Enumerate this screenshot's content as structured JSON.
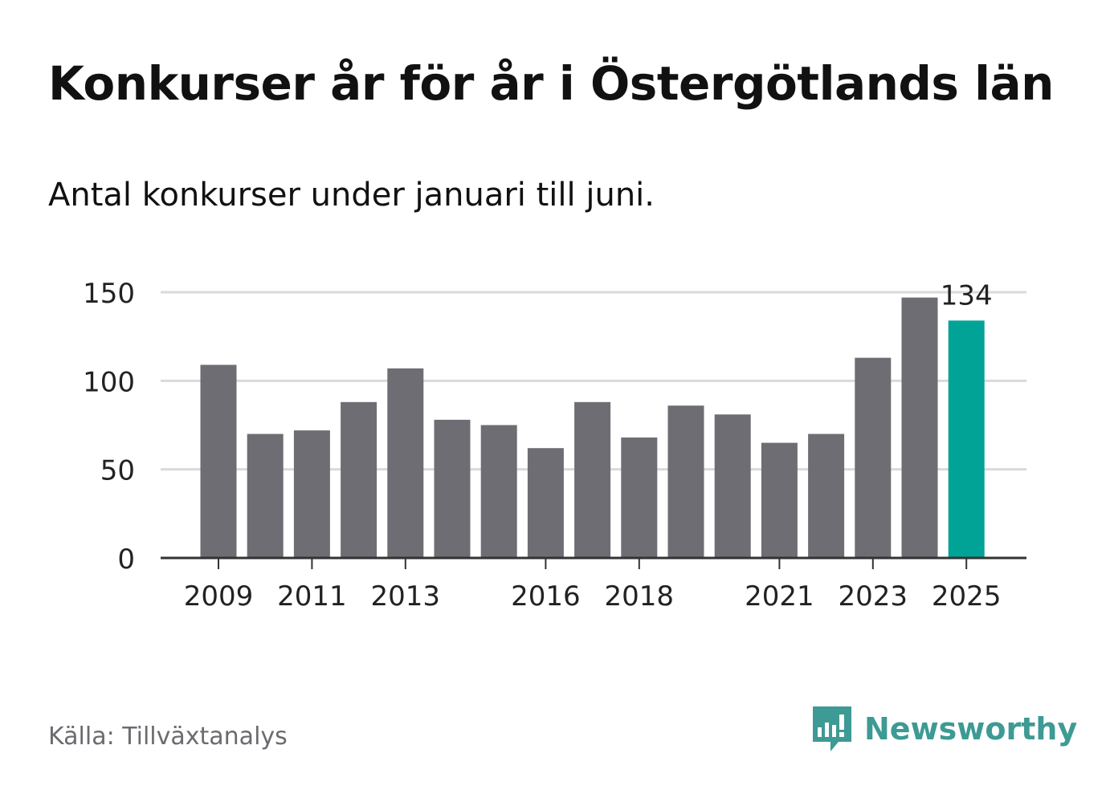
{
  "title": "Konkurser år för år i Östergötlands län",
  "subtitle": "Antal konkurser under januari till juni.",
  "source": "Källa: Tillväxtanalys",
  "logo": {
    "icon": "newsworthy-logo-icon",
    "text": "Newsworthy"
  },
  "colors": {
    "bar": "#6e6d73",
    "highlight": "#00a396",
    "grid": "#d9d9d9",
    "axis": "#333333",
    "text": "#222222",
    "brand": "#3d9a94"
  },
  "chart_data": {
    "type": "bar",
    "categories": [
      "2009",
      "2010",
      "2011",
      "2012",
      "2013",
      "2014",
      "2015",
      "2016",
      "2017",
      "2018",
      "2019",
      "2020",
      "2021",
      "2022",
      "2023",
      "2024",
      "2025"
    ],
    "values": [
      109,
      70,
      72,
      88,
      107,
      78,
      75,
      62,
      88,
      68,
      86,
      81,
      65,
      70,
      113,
      147,
      134
    ],
    "tick_labels": [
      "2009",
      "2011",
      "2013",
      "2016",
      "2018",
      "2021",
      "2023",
      "2025"
    ],
    "yticks": [
      0,
      50,
      100,
      150
    ],
    "ylim": [
      0,
      150
    ],
    "highlight_index": 16,
    "highlight_label": "134",
    "grid": true
  }
}
